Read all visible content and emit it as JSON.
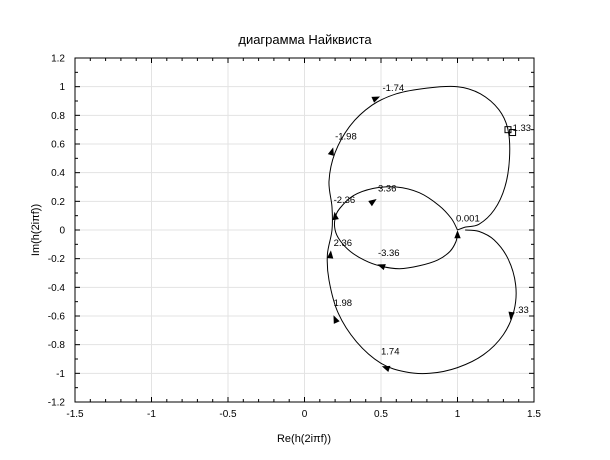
{
  "chart_data": {
    "type": "line",
    "title": "диаграмма Найквиста",
    "xlabel": "Re(h(2iπf))",
    "ylabel": "Im(h(2iπf))",
    "xlim": [
      -1.5,
      1.5
    ],
    "ylim": [
      -1.2,
      1.2
    ],
    "xticks": [
      -1.5,
      -1,
      -0.5,
      0,
      0.5,
      1,
      1.5
    ],
    "xtick_labels": [
      "-1.5",
      "-1",
      "-0.5",
      "0",
      "0.5",
      "1",
      "1.5"
    ],
    "yticks": [
      -1.2,
      -1,
      -0.8,
      -0.6,
      -0.4,
      -0.2,
      0,
      0.2,
      0.4,
      0.6,
      0.8,
      1,
      1.2
    ],
    "ytick_labels": [
      "-1.2",
      "-1",
      "-0.8",
      "-0.6",
      "-0.4",
      "-0.2",
      "0",
      "0.2",
      "0.4",
      "0.6",
      "0.8",
      "1",
      "1.2"
    ],
    "grid": true,
    "line_color": "#000000",
    "grid_color": "#e3e3e3",
    "series": [
      {
        "values": [
          {
            "x": 1.0,
            "y": -0.02
          },
          {
            "x": 0.99,
            "y": -0.08
          },
          {
            "x": 0.95,
            "y": -0.15
          },
          {
            "x": 0.87,
            "y": -0.21
          },
          {
            "x": 0.75,
            "y": -0.25
          },
          {
            "x": 0.62,
            "y": -0.27
          },
          {
            "x": 0.49,
            "y": -0.25
          },
          {
            "x": 0.39,
            "y": -0.21
          },
          {
            "x": 0.3,
            "y": -0.15
          },
          {
            "x": 0.23,
            "y": -0.07
          },
          {
            "x": 0.2,
            "y": 0.0
          },
          {
            "x": 0.2,
            "y": 0.08
          },
          {
            "x": 0.23,
            "y": 0.15
          },
          {
            "x": 0.32,
            "y": 0.24
          },
          {
            "x": 0.45,
            "y": 0.29
          },
          {
            "x": 0.6,
            "y": 0.3
          },
          {
            "x": 0.75,
            "y": 0.26
          },
          {
            "x": 0.88,
            "y": 0.17
          },
          {
            "x": 0.96,
            "y": 0.08
          },
          {
            "x": 1.0,
            "y": 0.0
          }
        ]
      },
      {
        "values": [
          {
            "x": 1.0,
            "y": 0.0
          },
          {
            "x": 1.05,
            "y": 0.02
          },
          {
            "x": 1.14,
            "y": 0.04
          },
          {
            "x": 1.24,
            "y": 0.14
          },
          {
            "x": 1.31,
            "y": 0.3
          },
          {
            "x": 1.34,
            "y": 0.5
          },
          {
            "x": 1.33,
            "y": 0.7
          },
          {
            "x": 1.27,
            "y": 0.84
          },
          {
            "x": 1.15,
            "y": 0.95
          },
          {
            "x": 1.0,
            "y": 1.0
          },
          {
            "x": 0.8,
            "y": 0.99
          },
          {
            "x": 0.6,
            "y": 0.95
          },
          {
            "x": 0.44,
            "y": 0.87
          },
          {
            "x": 0.3,
            "y": 0.73
          },
          {
            "x": 0.2,
            "y": 0.54
          },
          {
            "x": 0.16,
            "y": 0.34
          },
          {
            "x": 0.18,
            "y": 0.16
          },
          {
            "x": 0.18,
            "y": 0.0
          },
          {
            "x": 0.15,
            "y": -0.17
          },
          {
            "x": 0.16,
            "y": -0.35
          },
          {
            "x": 0.22,
            "y": -0.58
          },
          {
            "x": 0.34,
            "y": -0.78
          },
          {
            "x": 0.5,
            "y": -0.93
          },
          {
            "x": 0.66,
            "y": -0.99
          },
          {
            "x": 0.82,
            "y": -1.0
          },
          {
            "x": 1.0,
            "y": -0.96
          },
          {
            "x": 1.17,
            "y": -0.87
          },
          {
            "x": 1.3,
            "y": -0.73
          },
          {
            "x": 1.37,
            "y": -0.56
          },
          {
            "x": 1.38,
            "y": -0.38
          },
          {
            "x": 1.33,
            "y": -0.2
          },
          {
            "x": 1.24,
            "y": -0.07
          },
          {
            "x": 1.14,
            "y": -0.01
          },
          {
            "x": 1.05,
            "y": 0.0
          }
        ]
      }
    ],
    "arrows": [
      {
        "x": 0.47,
        "y": 0.92,
        "dx": 1,
        "dy": 0.45
      },
      {
        "x": 0.18,
        "y": 0.55,
        "dx": 0.3,
        "dy": 1
      },
      {
        "x": 0.2,
        "y": 0.1,
        "dx": -0.15,
        "dy": 1
      },
      {
        "x": 0.45,
        "y": 0.2,
        "dx": 1,
        "dy": 0.7
      },
      {
        "x": 0.17,
        "y": -0.17,
        "dx": 0.1,
        "dy": 1
      },
      {
        "x": 0.2,
        "y": -0.62,
        "dx": -0.45,
        "dy": 1
      },
      {
        "x": 0.53,
        "y": -0.96,
        "dx": -1,
        "dy": 0.35
      },
      {
        "x": 0.5,
        "y": -0.25,
        "dx": -1,
        "dy": 0.35
      },
      {
        "x": 1.35,
        "y": -0.6,
        "dx": -0.15,
        "dy": -1
      },
      {
        "x": 1.0,
        "y": -0.03,
        "dx": 0,
        "dy": 1
      }
    ],
    "annotations": [
      {
        "text": "-1.74",
        "x": 0.51,
        "y": 0.97
      },
      {
        "text": "-1.98",
        "x": 0.2,
        "y": 0.63
      },
      {
        "text": "-2.36",
        "x": 0.19,
        "y": 0.19
      },
      {
        "text": "3.36",
        "x": 0.48,
        "y": 0.27
      },
      {
        "text": "2.36",
        "x": 0.19,
        "y": -0.11
      },
      {
        "text": "-3.36",
        "x": 0.48,
        "y": -0.18
      },
      {
        "text": "1.98",
        "x": 0.19,
        "y": -0.53
      },
      {
        "text": "1.74",
        "x": 0.5,
        "y": -0.87
      },
      {
        "text": "0.001",
        "x": 0.99,
        "y": 0.06
      },
      {
        "text": ".33",
        "x": 1.38,
        "y": -0.58
      },
      {
        "text": "1.33",
        "x": 1.36,
        "y": 0.69
      }
    ],
    "markers": [
      {
        "x": 1.33,
        "y": 0.7
      },
      {
        "x": 1.36,
        "y": 0.68
      }
    ]
  }
}
